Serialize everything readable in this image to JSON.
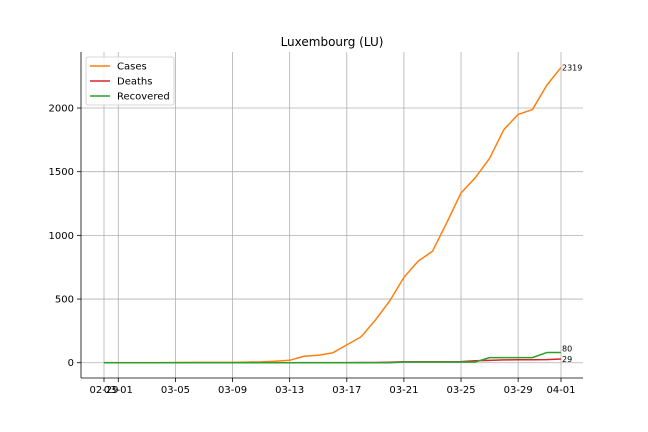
{
  "chart_data": {
    "type": "line",
    "title": "Luxembourg (LU)",
    "xlabel": "",
    "ylabel": "",
    "x": [
      "02-29",
      "03-01",
      "03-02",
      "03-03",
      "03-04",
      "03-05",
      "03-06",
      "03-07",
      "03-08",
      "03-09",
      "03-10",
      "03-11",
      "03-12",
      "03-13",
      "03-14",
      "03-15",
      "03-16",
      "03-17",
      "03-18",
      "03-19",
      "03-20",
      "03-21",
      "03-22",
      "03-23",
      "03-24",
      "03-25",
      "03-26",
      "03-27",
      "03-28",
      "03-29",
      "03-30",
      "03-31",
      "04-01"
    ],
    "x_ticks": [
      "02-29",
      "03-01",
      "03-05",
      "03-09",
      "03-13",
      "03-17",
      "03-21",
      "03-25",
      "03-29",
      "04-01"
    ],
    "ylim": [
      -120,
      2440
    ],
    "y_ticks": [
      0,
      500,
      1000,
      1500,
      2000
    ],
    "grid": true,
    "legend_position": "top-left",
    "series": [
      {
        "name": "Cases",
        "color": "#ff7f0e",
        "values": [
          1,
          1,
          1,
          1,
          1,
          2,
          3,
          3,
          3,
          3,
          5,
          7,
          12,
          19,
          51,
          59,
          77,
          140,
          203,
          335,
          484,
          670,
          798,
          875,
          1099,
          1333,
          1453,
          1605,
          1831,
          1950,
          1988,
          2178,
          2319
        ]
      },
      {
        "name": "Deaths",
        "color": "#d62728",
        "values": [
          0,
          0,
          0,
          0,
          0,
          0,
          0,
          0,
          0,
          0,
          0,
          0,
          0,
          0,
          1,
          1,
          1,
          1,
          2,
          2,
          4,
          8,
          8,
          8,
          8,
          9,
          15,
          18,
          22,
          23,
          23,
          24,
          29
        ]
      },
      {
        "name": "Recovered",
        "color": "#2ca02c",
        "values": [
          0,
          0,
          0,
          0,
          0,
          0,
          0,
          0,
          0,
          0,
          0,
          0,
          0,
          0,
          0,
          0,
          0,
          0,
          0,
          0,
          0,
          6,
          6,
          6,
          6,
          6,
          6,
          40,
          40,
          40,
          40,
          80,
          80
        ]
      }
    ],
    "end_labels": [
      "2319",
      "80",
      "29"
    ]
  }
}
